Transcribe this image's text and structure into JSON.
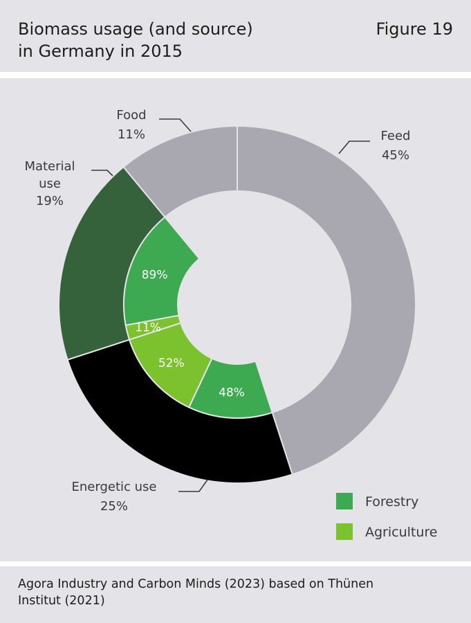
{
  "header": {
    "title_line1": "Biomass usage (and source)",
    "title_line2": "in Germany in 2015",
    "figure_label": "Figure 19"
  },
  "chart_data": {
    "type": "donut",
    "outer_ring": [
      {
        "name": "Feed",
        "label_lines": [
          "Feed"
        ],
        "value_label": "45%",
        "value": 45,
        "color": "#a9a8b1"
      },
      {
        "name": "Energetic use",
        "label_lines": [
          "Energetic use"
        ],
        "value_label": "25%",
        "value": 25,
        "color": "#000000"
      },
      {
        "name": "Material use",
        "label_lines": [
          "Material",
          "use"
        ],
        "value_label": "19%",
        "value": 19,
        "color": "#35623a"
      },
      {
        "name": "Food",
        "label_lines": [
          "Food"
        ],
        "value_label": "11%",
        "value": 11,
        "color": "#a9a8b1"
      }
    ],
    "inner_ring": [
      {
        "parent": "Energetic use",
        "source": "Forestry",
        "value_label": "48%",
        "value": 48,
        "color": "#3daa52"
      },
      {
        "parent": "Energetic use",
        "source": "Agriculture",
        "value_label": "52%",
        "value": 52,
        "color": "#7cc22f"
      },
      {
        "parent": "Material use",
        "source": "Agriculture",
        "value_label": "11%",
        "value": 11,
        "color": "#7cc22f"
      },
      {
        "parent": "Material use",
        "source": "Forestry",
        "value_label": "89%",
        "value": 89,
        "color": "#3daa52"
      }
    ],
    "legend": [
      {
        "label": "Forestry",
        "color": "#3daa52"
      },
      {
        "label": "Agriculture",
        "color": "#7cc22f"
      }
    ],
    "legend_position": "bottom-right"
  },
  "footer": {
    "source_line1": "Agora Industry and Carbon Minds (2023) based on Thünen",
    "source_line2": "Institut (2021)"
  }
}
